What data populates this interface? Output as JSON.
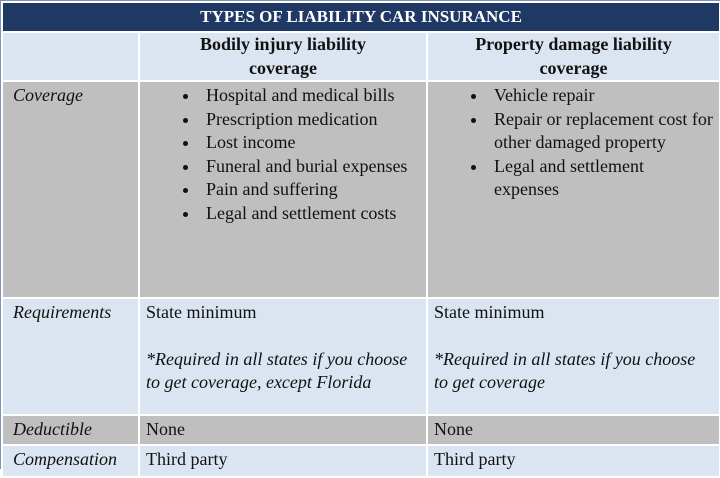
{
  "title": "TYPES OF LIABILITY CAR INSURANCE",
  "table": {
    "columns": [
      "Bodily injury liability coverage",
      "Property damage liability coverage"
    ],
    "rows": [
      {
        "label": "Coverage",
        "cells": [
          {
            "bullets": [
              "Hospital and medical bills",
              "Prescription medication",
              "Lost income",
              "Funeral and burial expenses",
              "Pain and suffering",
              "Legal and settlement costs"
            ]
          },
          {
            "bullets": [
              "Vehicle repair",
              "Repair or replacement cost for other damaged property",
              "Legal and settlement expenses"
            ]
          }
        ]
      },
      {
        "label": "Requirements",
        "cells": [
          {
            "text": "State minimum",
            "note": "*Required in all states if you choose to get coverage, except Florida"
          },
          {
            "text": "State minimum",
            "note": "*Required in all states if you choose to get coverage"
          }
        ]
      },
      {
        "label": "Deductible",
        "cells": [
          {
            "text": "None"
          },
          {
            "text": "None"
          }
        ]
      },
      {
        "label": "Compensation",
        "cells": [
          {
            "text": "Third party"
          },
          {
            "text": "Third party"
          }
        ]
      }
    ]
  }
}
